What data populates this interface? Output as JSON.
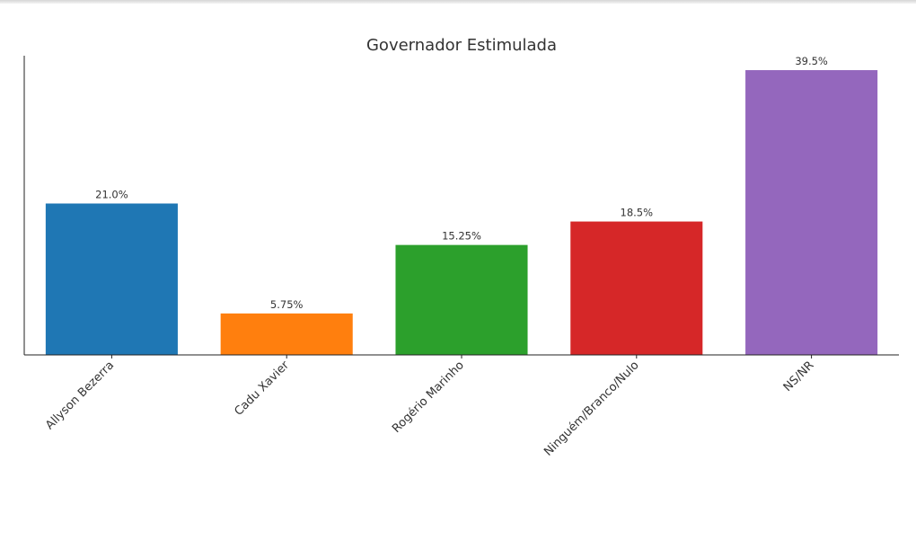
{
  "chart_data": {
    "type": "bar",
    "title": "Governador Estimulada",
    "xlabel": "",
    "ylabel": "",
    "categories": [
      "Allyson Bezerra",
      "Cadu Xavier",
      "Rogério Marinho",
      "Ninguém/Branco/Nulo",
      "NS/NR"
    ],
    "values": [
      21.0,
      5.75,
      15.25,
      18.5,
      39.5
    ],
    "value_labels": [
      "21.0%",
      "5.75%",
      "15.25%",
      "18.5%",
      "39.5%"
    ],
    "colors": [
      "#1f77b4",
      "#ff7f0e",
      "#2ca02c",
      "#d62728",
      "#9467bd"
    ],
    "ylim": [
      0,
      41.5
    ],
    "grid": false,
    "show_y_ticks": false
  }
}
